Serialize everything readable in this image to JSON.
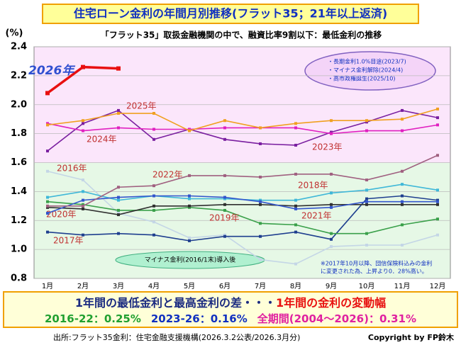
{
  "chart_data": {
    "type": "line",
    "title": "住宅ローン金利の年間月別推移(フラット35；21年以上返済)",
    "subtitle": "「フラット35」取扱金融機関の中で、融資比率9割以下：最低金利の推移",
    "y_label": "(%)",
    "categories": [
      "1月",
      "2月",
      "3月",
      "4月",
      "5月",
      "6月",
      "7月",
      "8月",
      "9月",
      "10月",
      "11月",
      "12月"
    ],
    "ylim": [
      0.8,
      2.4
    ],
    "yticks": [
      0.8,
      {
        "value": 1,
        "label": "1.0"
      },
      1.2,
      1.4,
      1.6,
      1.8,
      {
        "value": 2,
        "label": "2.0"
      },
      2.2,
      2.4
    ],
    "grid": true,
    "series": [
      {
        "name": "2016年",
        "color": "#c4d6e6",
        "values": [
          1.54,
          1.48,
          1.25,
          1.19,
          1.08,
          1.1,
          0.93,
          0.9,
          1.02,
          1.03,
          1.03,
          1.1
        ]
      },
      {
        "name": "2017年",
        "color": "#1f3f8f",
        "values": [
          1.12,
          1.1,
          1.11,
          1.1,
          1.06,
          1.09,
          1.09,
          1.12,
          1.07,
          1.35,
          1.37,
          1.34
        ]
      },
      {
        "name": "2018年",
        "color": "#40b8d8",
        "values": [
          1.36,
          1.4,
          1.34,
          1.37,
          1.35,
          1.35,
          1.34,
          1.34,
          1.39,
          1.41,
          1.45,
          1.41
        ]
      },
      {
        "name": "2019年",
        "color": "#3aa04a",
        "values": [
          1.33,
          1.31,
          1.27,
          1.27,
          1.29,
          1.27,
          1.18,
          1.17,
          1.11,
          1.11,
          1.17,
          1.21
        ]
      },
      {
        "name": "2020年",
        "color": "#303030",
        "values": [
          1.29,
          1.28,
          1.24,
          1.3,
          1.3,
          1.31,
          1.31,
          1.3,
          1.31,
          1.31,
          1.31,
          1.31
        ]
      },
      {
        "name": "2021年",
        "color": "#3355cc",
        "values": [
          1.25,
          1.34,
          1.36,
          1.37,
          1.37,
          1.36,
          1.33,
          1.28,
          1.29,
          1.33,
          1.33,
          1.33
        ]
      },
      {
        "name": "2022年",
        "color": "#a06080",
        "values": [
          1.3,
          1.3,
          1.43,
          1.44,
          1.51,
          1.51,
          1.5,
          1.52,
          1.52,
          1.48,
          1.54,
          1.65
        ]
      },
      {
        "name": "2023年",
        "color": "#7a1fa0",
        "values": [
          1.68,
          1.87,
          1.96,
          1.76,
          1.83,
          1.76,
          1.73,
          1.72,
          1.81,
          1.88,
          1.96,
          1.91
        ]
      },
      {
        "name": "2024年",
        "color": "#e020c0",
        "values": [
          1.87,
          1.82,
          1.84,
          1.83,
          1.83,
          1.84,
          1.84,
          1.84,
          1.8,
          1.82,
          1.82,
          1.86
        ]
      },
      {
        "name": "2025年",
        "color": "#f0a020",
        "values": [
          1.86,
          1.89,
          1.94,
          1.94,
          1.82,
          1.89,
          1.84,
          1.87,
          1.89,
          1.89,
          1.9,
          1.97
        ]
      },
      {
        "name": "2026年",
        "color": "#e81010",
        "values": [
          2.08,
          2.26,
          2.25,
          null,
          null,
          null,
          null,
          null,
          null,
          null,
          null,
          null
        ]
      }
    ],
    "notes": [
      "・長期金利1.0%目途(2023/7)",
      "・マイナス金利解除(2024/4)",
      "・高市政権誕生(2025/10)"
    ],
    "zone_label": "マイナス金利(2016/1末)導入後",
    "footnote": [
      "※2017年10月以降、団信保険料込みの金利",
      "に変更された為、上昇より0．28%高い。"
    ],
    "summary": {
      "heading": "1年間の最低金利と最高金利の差・・・",
      "heading_em": "1年間の金利の変動幅",
      "items": [
        "2016-22：0.25%",
        "2023-26：0.16%",
        "全期間(2004～2026)：0.31%"
      ]
    },
    "source": "出所:フラット35金利：住宅金融支援機構(2026.3.2公表/2026.3月分)",
    "copyright": "Copyright by FP鈴木"
  }
}
